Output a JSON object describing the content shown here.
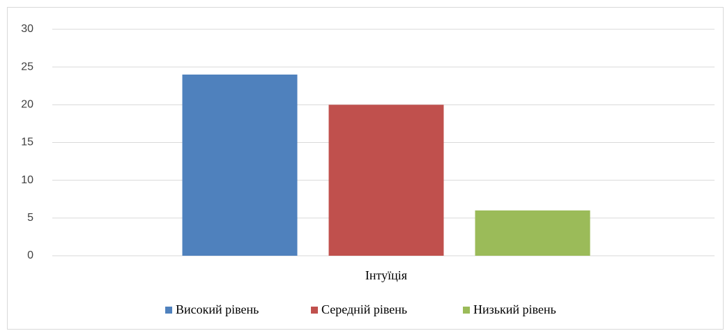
{
  "chart_data": {
    "type": "bar",
    "categories": [
      "Інтуїція"
    ],
    "series": [
      {
        "name": "Високий рівень",
        "color": "#4f81bd",
        "values": [
          24
        ]
      },
      {
        "name": "Середній рівень",
        "color": "#c0504d",
        "values": [
          20
        ]
      },
      {
        "name": "Низький рівень",
        "color": "#9bbb59",
        "values": [
          6
        ]
      }
    ],
    "ylim": [
      0,
      30
    ],
    "yticks": [
      0,
      5,
      10,
      15,
      20,
      25,
      30
    ],
    "grid": true,
    "legend": "bottom"
  }
}
